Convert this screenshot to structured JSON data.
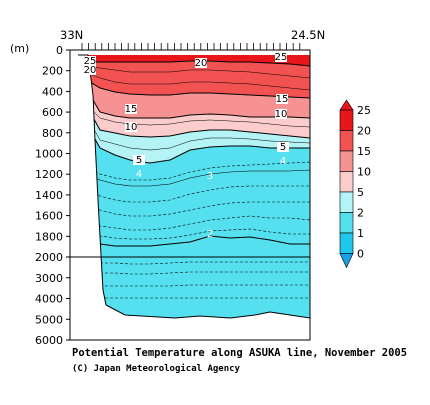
{
  "chart_data": {
    "type": "contour",
    "title": "Potential Temperature along ASUKA line, November 2005",
    "credit": "(C) Japan Meteorological Agency",
    "x_left_label": "33N",
    "x_right_label": "24.5N",
    "y_unit": "(m)",
    "y_ticks": [
      "0",
      "200",
      "400",
      "600",
      "800",
      "1000",
      "1200",
      "1400",
      "1600",
      "1800",
      "2000",
      "3000",
      "4000",
      "5000",
      "6000"
    ],
    "y_axis": {
      "upper_range": [
        0,
        2000
      ],
      "lower_range": [
        2000,
        6000
      ]
    },
    "colorbar": {
      "levels": [
        "25",
        "20",
        "15",
        "10",
        "5",
        "2",
        "1",
        "0"
      ],
      "colors": [
        "#e8161b",
        "#f25252",
        "#f79292",
        "#fbcccc",
        "#b4f4f7",
        "#54e0ef",
        "#1ec8ec",
        "#1aa0e6"
      ]
    },
    "contour_labels": [
      "25",
      "20",
      "25",
      "20",
      "15",
      "15",
      "10",
      "10",
      "5",
      "5",
      "4",
      "4",
      "3",
      "2"
    ],
    "bands": [
      {
        "level": "25",
        "color": "#e8161b"
      },
      {
        "level": "20",
        "color": "#f25252"
      },
      {
        "level": "15",
        "color": "#f79292"
      },
      {
        "level": "10",
        "color": "#fbcccc"
      },
      {
        "level": "5",
        "color": "#b4f4f7"
      },
      {
        "level": "2",
        "color": "#54e0ef"
      }
    ],
    "grid": false
  }
}
